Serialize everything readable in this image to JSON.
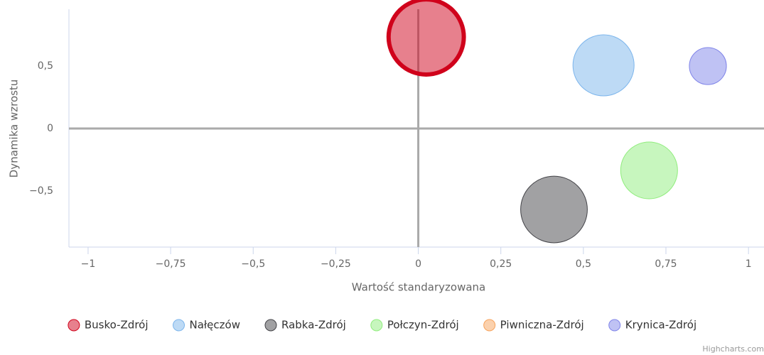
{
  "chart_data": {
    "type": "bubble",
    "x_axis_label": "Wartość standaryzowana",
    "y_axis_label": "Dynamika wzrostu",
    "xlim": [
      -1.058,
      1.047
    ],
    "ylim": [
      -0.949,
      0.955
    ],
    "xticks": [
      {
        "value": -1,
        "label": "−1"
      },
      {
        "value": -0.75,
        "label": "−0,75"
      },
      {
        "value": -0.5,
        "label": "−0,5"
      },
      {
        "value": -0.25,
        "label": "−0,25"
      },
      0,
      {
        "value": 0.25,
        "label": "0,25"
      },
      {
        "value": 0.5,
        "label": "0,5"
      },
      {
        "value": 0.75,
        "label": "0,75"
      },
      1
    ],
    "yticks": [
      {
        "value": -0.5,
        "label": "−0,5"
      },
      0,
      {
        "value": 0.5,
        "label": "0,5"
      }
    ],
    "x_plot_line": 0,
    "y_plot_line": 0,
    "grid": false,
    "legend": "bottom",
    "credits": "Highcharts.com",
    "series": [
      {
        "name": "Busko-Zdrój",
        "color": "#d0021b",
        "line_width": 6,
        "x": [
          0.024
        ],
        "values": [
          0.733
        ],
        "sizes": [
          28
        ]
      },
      {
        "name": "Nałęczów",
        "color": "#7cb5ec",
        "x": [
          0.561
        ],
        "values": [
          0.506
        ],
        "sizes": [
          18.5
        ]
      },
      {
        "name": "Rabka-Zdrój",
        "color": "#434348",
        "x": [
          0.411
        ],
        "values": [
          -0.648
        ],
        "sizes": [
          22
        ]
      },
      {
        "name": "Połczyn-Zdrój",
        "color": "#90ed7d",
        "x": [
          0.699
        ],
        "values": [
          -0.335
        ],
        "sizes": [
          16
        ]
      },
      {
        "name": "Piwniczna-Zdrój",
        "color": "#f7a35c",
        "x": [],
        "values": [],
        "sizes": []
      },
      {
        "name": "Krynica-Zdrój",
        "color": "#8085e9",
        "x": [
          0.877
        ],
        "values": [
          0.5
        ],
        "sizes": [
          6.8
        ]
      }
    ]
  }
}
